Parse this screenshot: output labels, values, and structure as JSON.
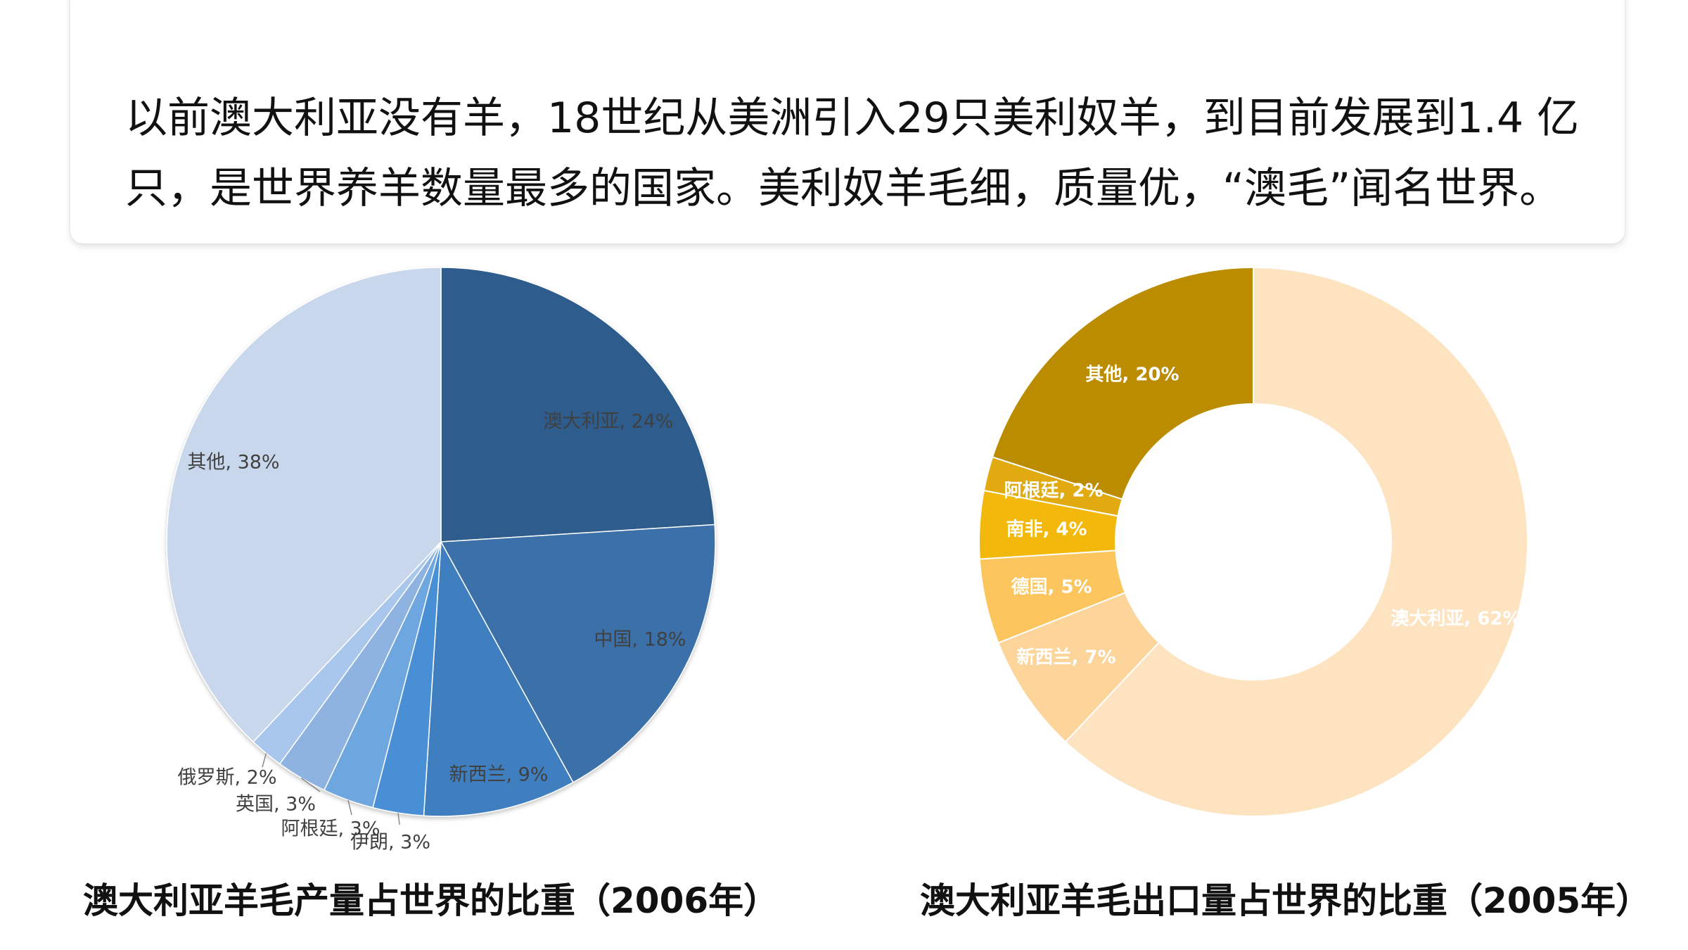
{
  "intro": {
    "line1": "以前澳大利亚没有羊，18世纪从美洲引入29只美利奴羊，到目前发展到1.4 亿",
    "line2": "只，是世界养羊数量最多的国家。美利奴羊毛细，质量优，“澳毛”闻名世界。"
  },
  "chart_data": [
    {
      "type": "pie",
      "title": "澳大利亚羊毛产量占世界的比重（2006年）",
      "categories": [
        "澳大利亚",
        "中国",
        "新西兰",
        "伊朗",
        "阿根廷",
        "英国",
        "俄罗斯",
        "其他"
      ],
      "values": [
        24,
        18,
        9,
        3,
        3,
        3,
        2,
        38
      ],
      "labels": [
        "澳大利亚, 24%",
        "中国, 18%",
        "新西兰, 9%",
        "伊朗, 3%",
        "阿根廷, 3%",
        "英国, 3%",
        "俄罗斯, 2%",
        "其他, 38%"
      ],
      "colors": [
        "#2e5b8c",
        "#3a70a8",
        "#3f7fbf",
        "#4a8fd6",
        "#6ea6e0",
        "#8fb3e0",
        "#a9c7ec",
        "#c9d7ec"
      ],
      "legend": "none",
      "data_labels": "category, percent"
    },
    {
      "type": "pie",
      "subtype": "doughnut",
      "title": "澳大利亚羊毛出口量占世界的比重（2005年）",
      "categories": [
        "澳大利亚",
        "新西兰",
        "德国",
        "南非",
        "阿根廷",
        "其他"
      ],
      "values": [
        62,
        7,
        5,
        4,
        2,
        20
      ],
      "labels": [
        "澳大利亚, 62%",
        "新西兰, 7%",
        "德国, 5%",
        "南非, 4%",
        "阿根廷, 2%",
        "其他, 20%"
      ],
      "colors": [
        "#fde3c0",
        "#fdd49a",
        "#fcc55e",
        "#f2b90c",
        "#e0aa10",
        "#bc8c00"
      ],
      "legend": "none",
      "data_labels": "category, percent"
    }
  ]
}
